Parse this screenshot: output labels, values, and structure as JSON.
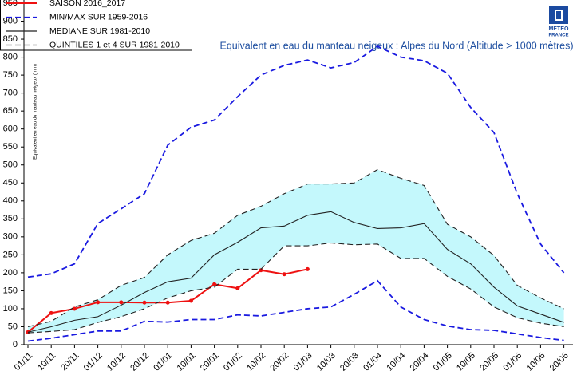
{
  "chart_data": {
    "type": "line",
    "title": "Equivalent en eau du manteau neigeux : Alpes du Nord (Altitude > 1000 mètres)",
    "y_label": "Equivalent en eau du manteau neigeux (mm)",
    "logo": [
      "METEO",
      "FRANCE"
    ],
    "categories": [
      "01/11",
      "10/11",
      "20/11",
      "01/12",
      "10/12",
      "20/12",
      "01/01",
      "10/01",
      "20/01",
      "01/02",
      "10/02",
      "20/02",
      "01/03",
      "10/03",
      "20/03",
      "01/04",
      "10/04",
      "20/04",
      "01/05",
      "10/05",
      "20/05",
      "01/06",
      "10/06",
      "20/06"
    ],
    "ylim": [
      0,
      950
    ],
    "yticks": [
      0,
      50,
      100,
      150,
      200,
      250,
      300,
      350,
      400,
      450,
      500,
      550,
      600,
      650,
      700,
      750,
      800,
      850,
      900,
      950
    ],
    "legend": "top-left",
    "series": [
      {
        "name": "SAISON 2016_2017",
        "color": "#ee1111",
        "dash": "solid",
        "markers": true,
        "values": [
          35,
          88,
          100,
          118,
          118,
          117,
          117,
          122,
          168,
          157,
          207,
          196,
          210,
          null,
          null,
          null,
          null,
          null,
          null,
          null,
          null,
          null,
          null,
          null
        ]
      },
      {
        "name": "MIN/MAX SUR 1959-2016",
        "color": "#1a1ae0",
        "dash": "dashed",
        "values": [
          188,
          197,
          225,
          337,
          378,
          420,
          555,
          605,
          625,
          690,
          750,
          777,
          792,
          770,
          785,
          830,
          800,
          790,
          755,
          660,
          590,
          420,
          280,
          200
        ],
        "lower": [
          10,
          18,
          28,
          38,
          38,
          65,
          63,
          70,
          70,
          83,
          80,
          90,
          100,
          105,
          140,
          178,
          105,
          70,
          52,
          42,
          40,
          30,
          20,
          12
        ]
      },
      {
        "name": "MEDIANE SUR 1981-2010",
        "color": "#222222",
        "dash": "solid",
        "values": [
          35,
          50,
          68,
          78,
          110,
          145,
          175,
          185,
          250,
          285,
          325,
          330,
          360,
          370,
          340,
          323,
          325,
          337,
          265,
          225,
          160,
          108,
          85,
          62
        ]
      },
      {
        "name": "QUINTILES 1 et 4 SUR 1981-2010",
        "color": "#222222",
        "dash": "dashed",
        "fill": "#c4f8fc",
        "values": [
          50,
          65,
          105,
          125,
          165,
          187,
          250,
          290,
          310,
          360,
          385,
          420,
          447,
          447,
          450,
          487,
          463,
          443,
          335,
          300,
          248,
          165,
          130,
          100
        ],
        "lower": [
          33,
          37,
          42,
          62,
          78,
          100,
          130,
          150,
          160,
          210,
          210,
          275,
          275,
          283,
          278,
          280,
          240,
          240,
          190,
          155,
          105,
          75,
          60,
          50
        ]
      }
    ]
  }
}
